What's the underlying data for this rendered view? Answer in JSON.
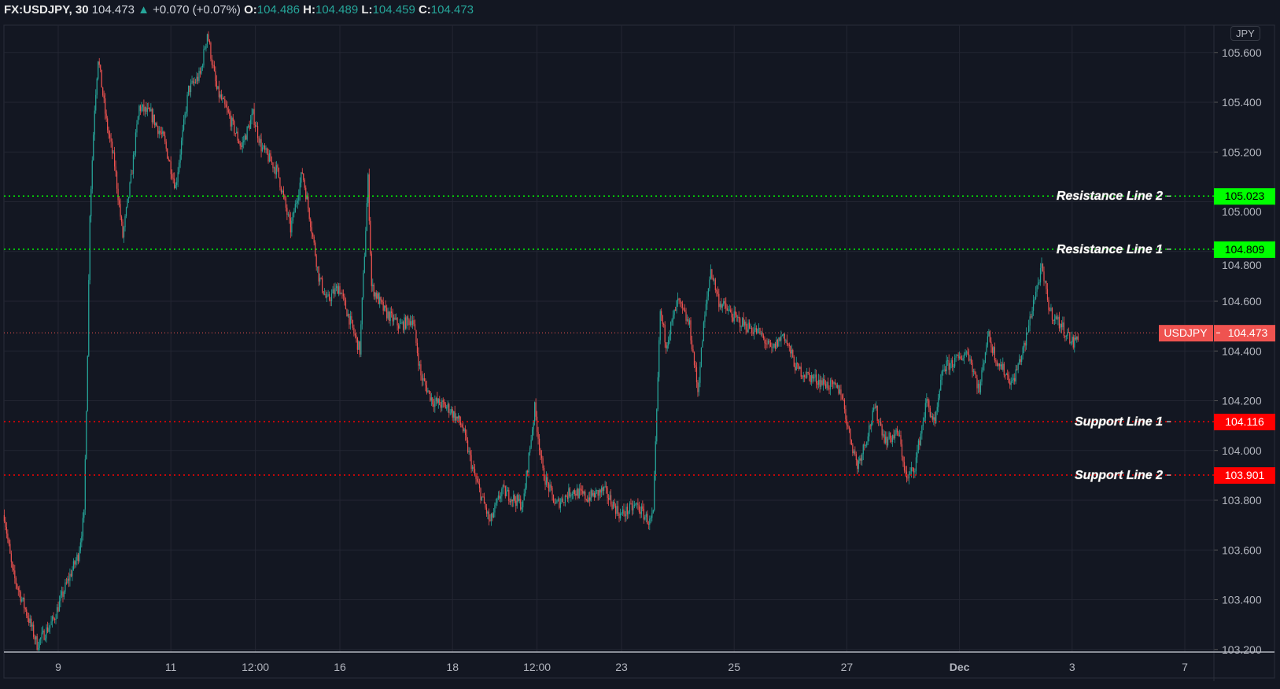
{
  "header": {
    "symbol": "FX:USDJPY, 30",
    "last": "104.473",
    "change": "+0.070 (+0.07%)",
    "o_label": "O:",
    "o": "104.486",
    "h_label": "H:",
    "h": "104.489",
    "l_label": "L:",
    "l": "104.459",
    "c_label": "C:",
    "c": "104.473"
  },
  "currency_button": "JPY",
  "colors": {
    "background": "#131722",
    "up": "#26a69a",
    "down": "#ef5350",
    "resistance": "#00ff00",
    "support": "#ff0000",
    "last_price": "#ef5350"
  },
  "chart_data": {
    "type": "candlestick",
    "interval": "30 min",
    "yaxis": {
      "range": [
        103.2,
        105.7
      ],
      "ticks": [
        "105.600",
        "105.400",
        "105.200",
        "105.000",
        "104.800",
        "104.600",
        "104.400",
        "104.200",
        "104.000",
        "103.800",
        "103.600",
        "103.400",
        "103.200"
      ],
      "side": "right"
    },
    "xaxis": {
      "ticks": [
        "9",
        "11",
        "12:00",
        "16",
        "18",
        "12:00",
        "23",
        "25",
        "27",
        "Dec",
        "3",
        "7"
      ]
    },
    "grid": true,
    "price_path": [
      [
        "Nov 6 01:00",
        103.74
      ],
      [
        "Nov 6 04:30",
        103.51
      ],
      [
        "Nov 6 11:30",
        103.32
      ],
      [
        "Nov 6 15:00",
        103.22
      ],
      [
        "Nov 6 22:00",
        103.32
      ],
      [
        "Nov 9 03:00",
        103.45
      ],
      [
        "Nov 9 08:30",
        103.58
      ],
      [
        "Nov 9 11:00",
        103.74
      ],
      [
        "Nov 9 12:30",
        104.4
      ],
      [
        "Nov 9 13:30",
        104.96
      ],
      [
        "Nov 9 15:30",
        105.38
      ],
      [
        "Nov 9 17:00",
        105.58
      ],
      [
        "Nov 9 20:30",
        105.32
      ],
      [
        "Nov 10 00:00",
        105.15
      ],
      [
        "Nov 10 03:30",
        104.86
      ],
      [
        "Nov 10 07:00",
        105.09
      ],
      [
        "Nov 10 10:30",
        105.38
      ],
      [
        "Nov 10 15:30",
        105.35
      ],
      [
        "Nov 10 21:00",
        105.25
      ],
      [
        "Nov 11 02:00",
        105.06
      ],
      [
        "Nov 11 07:30",
        105.45
      ],
      [
        "Nov 11 12:30",
        105.51
      ],
      [
        "Nov 11 15:30",
        105.68
      ],
      [
        "Nov 11 19:30",
        105.45
      ],
      [
        "Nov 12 00:30",
        105.35
      ],
      [
        "Nov 12 06:00",
        105.22
      ],
      [
        "Nov 12 11:00",
        105.35
      ],
      [
        "Nov 12 14:30",
        105.22
      ],
      [
        "Nov 12 21:30",
        105.12
      ],
      [
        "Nov 13 03:00",
        104.89
      ],
      [
        "Nov 13 08:00",
        105.12
      ],
      [
        "Nov 13 11:30",
        104.92
      ],
      [
        "Nov 13 15:00",
        104.7
      ],
      [
        "Nov 13 18:30",
        104.6
      ],
      [
        "Nov 13 23:30",
        104.66
      ],
      [
        "Nov 16 03:00",
        104.56
      ],
      [
        "Nov 16 08:30",
        104.4
      ],
      [
        "Nov 16 12:00",
        105.09
      ],
      [
        "Nov 16 13:30",
        104.66
      ],
      [
        "Nov 16 19:00",
        104.56
      ],
      [
        "Nov 17 01:30",
        104.5
      ],
      [
        "Nov 17 07:00",
        104.53
      ],
      [
        "Nov 17 10:30",
        104.3
      ],
      [
        "Nov 17 15:30",
        104.2
      ],
      [
        "Nov 17 22:30",
        104.17
      ],
      [
        "Nov 18 04:00",
        104.1
      ],
      [
        "Nov 18 09:00",
        103.91
      ],
      [
        "Nov 18 16:00",
        103.71
      ],
      [
        "Nov 18 21:00",
        103.84
      ],
      [
        "Nov 19 06:00",
        103.78
      ],
      [
        "Nov 19 11:00",
        104.17
      ],
      [
        "Nov 19 14:30",
        103.91
      ],
      [
        "Nov 19 20:00",
        103.78
      ],
      [
        "Nov 20 03:00",
        103.84
      ],
      [
        "Nov 20 09:30",
        103.81
      ],
      [
        "Nov 20 16:30",
        103.84
      ],
      [
        "Nov 20 23:30",
        103.74
      ],
      [
        "Nov 23 06:30",
        103.78
      ],
      [
        "Nov 23 12:00",
        103.71
      ],
      [
        "Nov 23 13:30",
        103.74
      ],
      [
        "Nov 23 16:30",
        104.56
      ],
      [
        "Nov 23 19:00",
        104.43
      ],
      [
        "Nov 24 00:00",
        104.6
      ],
      [
        "Nov 24 05:00",
        104.5
      ],
      [
        "Nov 24 08:30",
        104.24
      ],
      [
        "Nov 24 11:00",
        104.5
      ],
      [
        "Nov 24 14:00",
        104.73
      ],
      [
        "Nov 24 17:30",
        104.6
      ],
      [
        "Nov 25 00:30",
        104.53
      ],
      [
        "Nov 25 05:30",
        104.5
      ],
      [
        "Nov 25 11:00",
        104.47
      ],
      [
        "Nov 25 16:00",
        104.4
      ],
      [
        "Nov 25 21:00",
        104.47
      ],
      [
        "Nov 26 02:30",
        104.33
      ],
      [
        "Nov 26 07:30",
        104.3
      ],
      [
        "Nov 26 14:30",
        104.27
      ],
      [
        "Nov 26 21:30",
        104.24
      ],
      [
        "Nov 27 01:00",
        104.07
      ],
      [
        "Nov 27 04:30",
        103.94
      ],
      [
        "Nov 27 08:00",
        104.04
      ],
      [
        "Nov 27 12:00",
        104.17
      ],
      [
        "Nov 27 16:30",
        104.04
      ],
      [
        "Nov 27 22:00",
        104.07
      ],
      [
        "Nov 30 01:30",
        103.88
      ],
      [
        "Nov 30 05:00",
        103.94
      ],
      [
        "Nov 30 10:00",
        104.2
      ],
      [
        "Nov 30 13:30",
        104.1
      ],
      [
        "Nov 30 17:00",
        104.33
      ],
      [
        "Dec 1 00:00",
        104.37
      ],
      [
        "Dec 1 03:30",
        104.4
      ],
      [
        "Dec 1 08:30",
        104.24
      ],
      [
        "Dec 1 12:00",
        104.47
      ],
      [
        "Dec 1 15:30",
        104.37
      ],
      [
        "Dec 1 22:30",
        104.27
      ],
      [
        "Dec 2 04:00",
        104.43
      ],
      [
        "Dec 2 07:30",
        104.6
      ],
      [
        "Dec 2 11:00",
        104.73
      ],
      [
        "Dec 2 14:30",
        104.56
      ],
      [
        "Dec 2 19:30",
        104.5
      ],
      [
        "Dec 3 00:30",
        104.43
      ],
      [
        "Dec 3 03:00",
        104.473
      ]
    ],
    "lines": [
      {
        "label": "Resistance Line 2",
        "value": 105.023,
        "tag": "105.023",
        "kind": "resistance"
      },
      {
        "label": "Resistance Line 1",
        "value": 104.809,
        "tag": "104.809",
        "kind": "resistance"
      },
      {
        "label": "Support Line 1",
        "value": 104.116,
        "tag": "104.116",
        "kind": "support"
      },
      {
        "label": "Support Line 2",
        "value": 103.901,
        "tag": "103.901",
        "kind": "support"
      }
    ],
    "last_price": {
      "label": "USDJPY",
      "value": 104.473,
      "tag": "104.473"
    }
  }
}
